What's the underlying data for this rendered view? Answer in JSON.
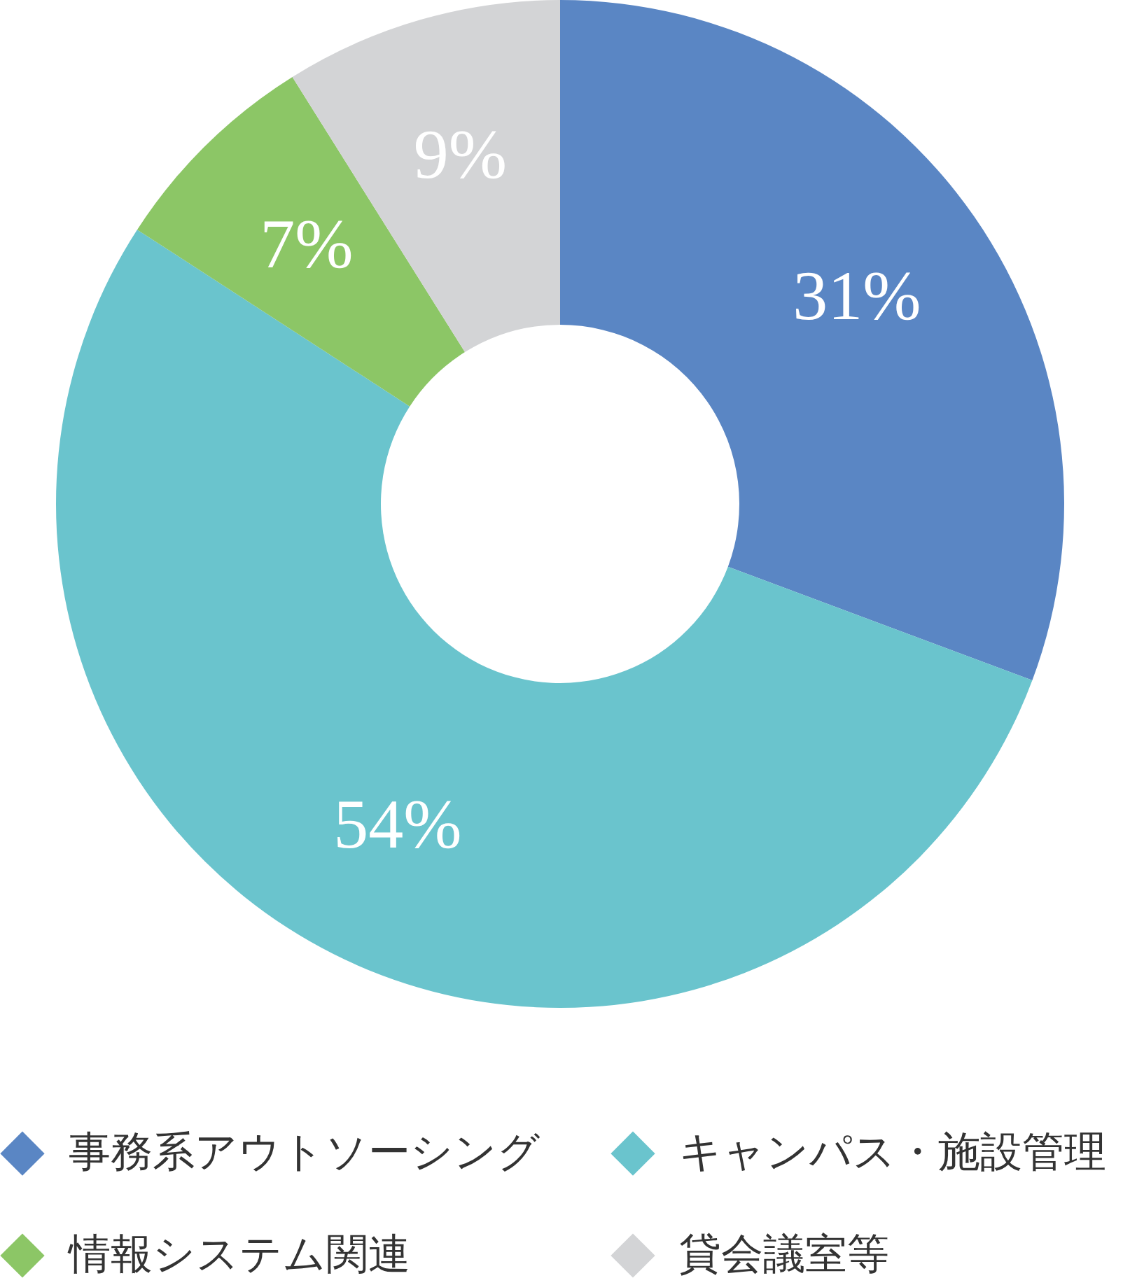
{
  "chart_data": {
    "type": "donut",
    "categories": [
      "事務系アウトソーシング",
      "キャンパス・施設管理",
      "情報システム関連",
      "貸会議室等"
    ],
    "values": [
      31,
      54,
      7,
      9
    ],
    "value_labels": [
      "31%",
      "54%",
      "7%",
      "9%"
    ],
    "colors": [
      "#5a86c4",
      "#6ac4cd",
      "#8cc666",
      "#d3d4d6"
    ],
    "legend": "bottom"
  }
}
